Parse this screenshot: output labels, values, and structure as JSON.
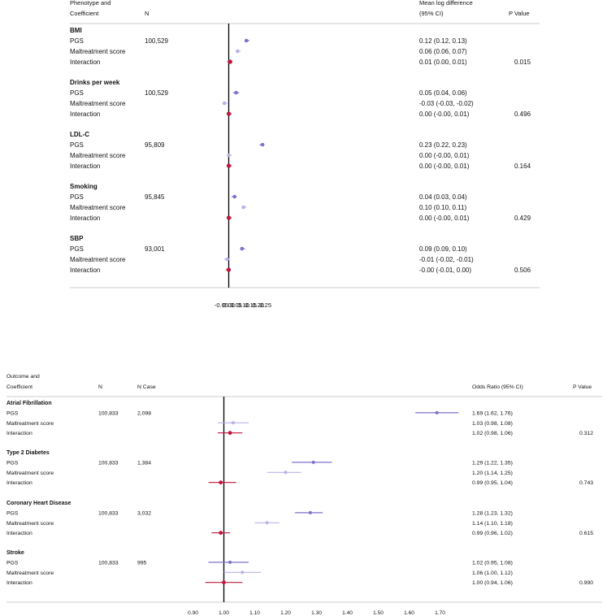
{
  "chart_data": [
    {
      "type": "forest",
      "headers": {
        "col1_line1": "Phenotype and",
        "col1_line2": "Coefficient",
        "col2": "N",
        "col3_line1": "Mean log difference",
        "col3_line2": "(95% CI)",
        "col4": "P Value"
      },
      "ref_line": 0,
      "xlim": [
        -0.07,
        0.27
      ],
      "xticks": [
        -0.05,
        0.0,
        0.05,
        0.1,
        0.15,
        0.2,
        0.25
      ],
      "xtick_labels": [
        "-0.05",
        "0.00",
        "0.05",
        "0.10",
        "0.15",
        "0.20",
        "0.25"
      ],
      "groups": [
        {
          "name": "BMI",
          "rows": [
            {
              "label": "PGS",
              "n": "100,529",
              "est": 0.12,
              "lo": 0.12,
              "hi": 0.13,
              "ci_text": "0.12 (0.12, 0.13)",
              "p": "",
              "kind": "pgs"
            },
            {
              "label": "Maltreatment score",
              "n": "",
              "est": 0.06,
              "lo": 0.06,
              "hi": 0.07,
              "ci_text": "0.06 (0.06, 0.07)",
              "p": "",
              "kind": "mal"
            },
            {
              "label": "Interaction",
              "n": "",
              "est": 0.01,
              "lo": 0.0,
              "hi": 0.01,
              "ci_text": "0.01 (0.00, 0.01)",
              "p": "0.015",
              "kind": "int"
            }
          ]
        },
        {
          "name": "Drinks per week",
          "rows": [
            {
              "label": "PGS",
              "n": "100,529",
              "est": 0.05,
              "lo": 0.04,
              "hi": 0.06,
              "ci_text": "0.05 (0.04, 0.06)",
              "p": "",
              "kind": "pgs"
            },
            {
              "label": "Maltreatment score",
              "n": "",
              "est": -0.03,
              "lo": -0.03,
              "hi": -0.02,
              "ci_text": "-0.03 (-0.03, -0.02)",
              "p": "",
              "kind": "mal"
            },
            {
              "label": "Interaction",
              "n": "",
              "est": 0.0,
              "lo": -0.0,
              "hi": 0.01,
              "ci_text": "0.00 (-0.00, 0.01)",
              "p": "0.496",
              "kind": "int"
            }
          ]
        },
        {
          "name": "LDL-C",
          "rows": [
            {
              "label": "PGS",
              "n": "95,809",
              "est": 0.23,
              "lo": 0.22,
              "hi": 0.23,
              "ci_text": "0.23 (0.22, 0.23)",
              "p": "",
              "kind": "pgs"
            },
            {
              "label": "Maltreatment score",
              "n": "",
              "est": 0.0,
              "lo": -0.0,
              "hi": 0.01,
              "ci_text": "0.00 (-0.00, 0.01)",
              "p": "",
              "kind": "mal"
            },
            {
              "label": "Interaction",
              "n": "",
              "est": 0.0,
              "lo": -0.0,
              "hi": 0.01,
              "ci_text": "0.00 (-0.00, 0.01)",
              "p": "0.164",
              "kind": "int"
            }
          ]
        },
        {
          "name": "Smoking",
          "rows": [
            {
              "label": "PGS",
              "n": "95,845",
              "est": 0.04,
              "lo": 0.03,
              "hi": 0.04,
              "ci_text": "0.04 (0.03, 0.04)",
              "p": "",
              "kind": "pgs"
            },
            {
              "label": "Maltreatment score",
              "n": "",
              "est": 0.1,
              "lo": 0.1,
              "hi": 0.11,
              "ci_text": "0.10 (0.10, 0.11)",
              "p": "",
              "kind": "mal"
            },
            {
              "label": "Interaction",
              "n": "",
              "est": 0.0,
              "lo": -0.0,
              "hi": 0.01,
              "ci_text": "0.00 (-0.00, 0.01)",
              "p": "0.429",
              "kind": "int"
            }
          ]
        },
        {
          "name": "SBP",
          "rows": [
            {
              "label": "PGS",
              "n": "93,001",
              "est": 0.09,
              "lo": 0.09,
              "hi": 0.1,
              "ci_text": "0.09 (0.09, 0.10)",
              "p": "",
              "kind": "pgs"
            },
            {
              "label": "Maltreatment score",
              "n": "",
              "est": -0.01,
              "lo": -0.02,
              "hi": -0.01,
              "ci_text": "-0.01 (-0.02, -0.01)",
              "p": "",
              "kind": "mal"
            },
            {
              "label": "Interaction",
              "n": "",
              "est": -0.0,
              "lo": -0.01,
              "hi": 0.0,
              "ci_text": "-0.00 (-0.01, 0.00)",
              "p": "0.506",
              "kind": "int"
            }
          ]
        }
      ]
    },
    {
      "type": "forest",
      "headers": {
        "col1_line1": "Outcome and",
        "col1_line2": "Coefficient",
        "col2": "N",
        "col3": "N Case",
        "col4": "Odds Ratio (95% CI)",
        "col5": "P Value"
      },
      "ref_line": 1.0,
      "xlim": [
        0.87,
        1.79
      ],
      "xticks": [
        0.9,
        1.0,
        1.1,
        1.2,
        1.3,
        1.4,
        1.5,
        1.6,
        1.7
      ],
      "xtick_labels": [
        "0.90",
        "1.00",
        "1.10",
        "1.20",
        "1.30",
        "1.40",
        "1.50",
        "1.60",
        "1.70"
      ],
      "groups": [
        {
          "name": "Atrial Fibrillation",
          "rows": [
            {
              "label": "PGS",
              "n": "100,833",
              "ncase": "2,098",
              "est": 1.69,
              "lo": 1.62,
              "hi": 1.76,
              "ci_text": "1.69 (1.62, 1.76)",
              "p": "",
              "kind": "pgs"
            },
            {
              "label": "Maltreatment score",
              "n": "",
              "ncase": "",
              "est": 1.03,
              "lo": 0.98,
              "hi": 1.08,
              "ci_text": "1.03 (0.98, 1.08)",
              "p": "",
              "kind": "mal"
            },
            {
              "label": "Interaction",
              "n": "",
              "ncase": "",
              "est": 1.02,
              "lo": 0.98,
              "hi": 1.06,
              "ci_text": "1.02 (0.98, 1.06)",
              "p": "0.312",
              "kind": "int"
            }
          ]
        },
        {
          "name": "Type 2 Diabetes",
          "rows": [
            {
              "label": "PGS",
              "n": "100,833",
              "ncase": "1,384",
              "est": 1.29,
              "lo": 1.22,
              "hi": 1.35,
              "ci_text": "1.29 (1.22, 1.35)",
              "p": "",
              "kind": "pgs"
            },
            {
              "label": "Maltreatment score",
              "n": "",
              "ncase": "",
              "est": 1.2,
              "lo": 1.14,
              "hi": 1.25,
              "ci_text": "1.20 (1.14, 1.25)",
              "p": "",
              "kind": "mal"
            },
            {
              "label": "Interaction",
              "n": "",
              "ncase": "",
              "est": 0.99,
              "lo": 0.95,
              "hi": 1.04,
              "ci_text": "0.99 (0.95, 1.04)",
              "p": "0.743",
              "kind": "int"
            }
          ]
        },
        {
          "name": "Coronary Heart Disease",
          "rows": [
            {
              "label": "PGS",
              "n": "100,833",
              "ncase": "3,032",
              "est": 1.28,
              "lo": 1.23,
              "hi": 1.32,
              "ci_text": "1.28 (1.23, 1.32)",
              "p": "",
              "kind": "pgs"
            },
            {
              "label": "Maltreatment score",
              "n": "",
              "ncase": "",
              "est": 1.14,
              "lo": 1.1,
              "hi": 1.18,
              "ci_text": "1.14 (1.10, 1.18)",
              "p": "",
              "kind": "mal"
            },
            {
              "label": "Interaction",
              "n": "",
              "ncase": "",
              "est": 0.99,
              "lo": 0.96,
              "hi": 1.02,
              "ci_text": "0.99 (0.96, 1.02)",
              "p": "0.615",
              "kind": "int"
            }
          ]
        },
        {
          "name": "Stroke",
          "rows": [
            {
              "label": "PGS",
              "n": "100,833",
              "ncase": "995",
              "est": 1.02,
              "lo": 0.95,
              "hi": 1.08,
              "ci_text": "1.02 (0.95, 1.08)",
              "p": "",
              "kind": "pgs"
            },
            {
              "label": "Maltreatment score",
              "n": "",
              "ncase": "",
              "est": 1.06,
              "lo": 1.0,
              "hi": 1.12,
              "ci_text": "1.06 (1.00, 1.12)",
              "p": "",
              "kind": "mal"
            },
            {
              "label": "Interaction",
              "n": "",
              "ncase": "",
              "est": 1.0,
              "lo": 0.94,
              "hi": 1.06,
              "ci_text": "1.00 (0.94, 1.06)",
              "p": "0.990",
              "kind": "int"
            }
          ]
        }
      ]
    }
  ],
  "colors": {
    "pgs": "#7b72c9",
    "mal": "#b9b3e6",
    "int": "#c0143c",
    "axis": "#000000",
    "rule": "#9a9a9a"
  }
}
